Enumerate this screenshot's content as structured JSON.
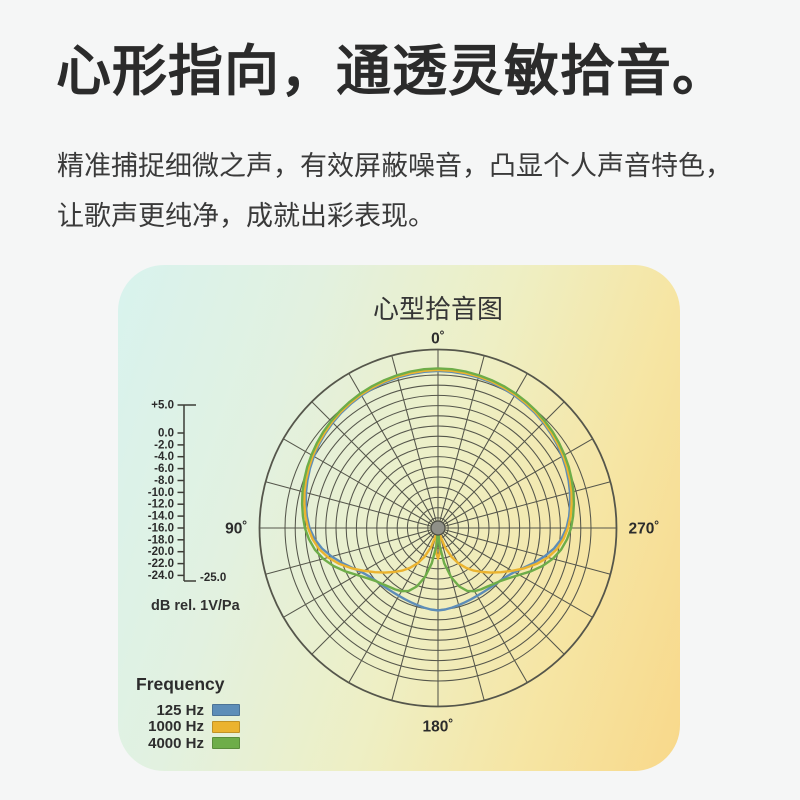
{
  "page": {
    "heading": "心形指向，通透灵敏拾音。",
    "subtitle_line1": "精准捕捉细微之声，有效屏蔽噪音，凸显个人声音特色，",
    "subtitle_line2": "让歌声更纯净，成就出彩表现。"
  },
  "card": {
    "gradient": [
      "#d8f3ee",
      "#e2f1e0",
      "#eeefc4",
      "#f6e5a3",
      "#f8d88a"
    ]
  },
  "chart_data": {
    "type": "polar",
    "title": "心型拾音图",
    "unit_label": "dB rel. 1V/Pa",
    "legend_title": "Frequency",
    "legend_position": "bottom-left",
    "angle_labels": [
      {
        "deg": 0,
        "label": "0˚"
      },
      {
        "deg": 90,
        "label": "90˚"
      },
      {
        "deg": 270,
        "label": "270˚"
      },
      {
        "deg": 180,
        "label": "180˚"
      }
    ],
    "db_ticks": [
      "+5.0",
      "0.0",
      "-2.0",
      "-4.0",
      "-6.0",
      "-8.0",
      "-10.0",
      "-12.0",
      "-14.0",
      "-16.0",
      "-18.0",
      "-20.0",
      "-22.0",
      "-24.0"
    ],
    "db_axis_end_label": "-25.0",
    "grid": {
      "color": "#55564b",
      "ring_db": [
        5,
        0,
        -2,
        -4,
        -6,
        -8,
        -10,
        -12,
        -14,
        -16,
        -18,
        -20,
        -22,
        -24,
        -26,
        -28
      ],
      "spoke_step_deg": 15,
      "outer_db": 5,
      "center_db": -30,
      "grid_on": true
    },
    "angle_start_deg": 0,
    "angle_step_deg": 5,
    "symmetric_mirror": true,
    "series": [
      {
        "name": "125 Hz",
        "color": "#5d8db8",
        "db": [
          0.8,
          0.75,
          0.65,
          0.55,
          0.4,
          0.2,
          0.0,
          -0.25,
          -0.5,
          -0.8,
          -1.15,
          -1.5,
          -1.9,
          -2.3,
          -2.75,
          -3.2,
          -3.7,
          -4.2,
          -4.8,
          -5.7,
          -6.9,
          -8.4,
          -10.0,
          -11.5,
          -12.7,
          -13.5,
          -14.0,
          -14.3,
          -14.5,
          -14.6,
          -14.65,
          -14.6,
          -14.5,
          -14.35,
          -14.15,
          -13.95,
          -13.85
        ]
      },
      {
        "name": "1000 Hz",
        "color": "#ebb32f",
        "db": [
          1.0,
          0.95,
          0.85,
          0.75,
          0.6,
          0.4,
          0.2,
          -0.05,
          -0.3,
          -0.6,
          -0.95,
          -1.3,
          -1.65,
          -2.05,
          -2.45,
          -2.9,
          -3.4,
          -3.9,
          -4.5,
          -5.3,
          -6.3,
          -7.7,
          -9.4,
          -11.3,
          -13.2,
          -14.9,
          -16.4,
          -17.8,
          -19.1,
          -20.5,
          -22.0,
          -23.8,
          -26.0,
          -28.7,
          -28.4,
          -25.3,
          -24.0
        ]
      },
      {
        "name": "4000 Hz",
        "color": "#6ead49",
        "db": [
          1.3,
          1.25,
          1.15,
          1.0,
          0.85,
          0.65,
          0.45,
          0.2,
          -0.05,
          -0.35,
          -0.65,
          -1.0,
          -1.35,
          -1.7,
          -2.1,
          -2.5,
          -2.95,
          -3.4,
          -3.9,
          -4.6,
          -5.5,
          -6.7,
          -8.2,
          -9.9,
          -11.6,
          -12.9,
          -13.9,
          -14.5,
          -15.0,
          -15.3,
          -15.7,
          -16.4,
          -17.8,
          -20.0,
          -23.0,
          -26.6,
          -30.0
        ]
      }
    ]
  }
}
